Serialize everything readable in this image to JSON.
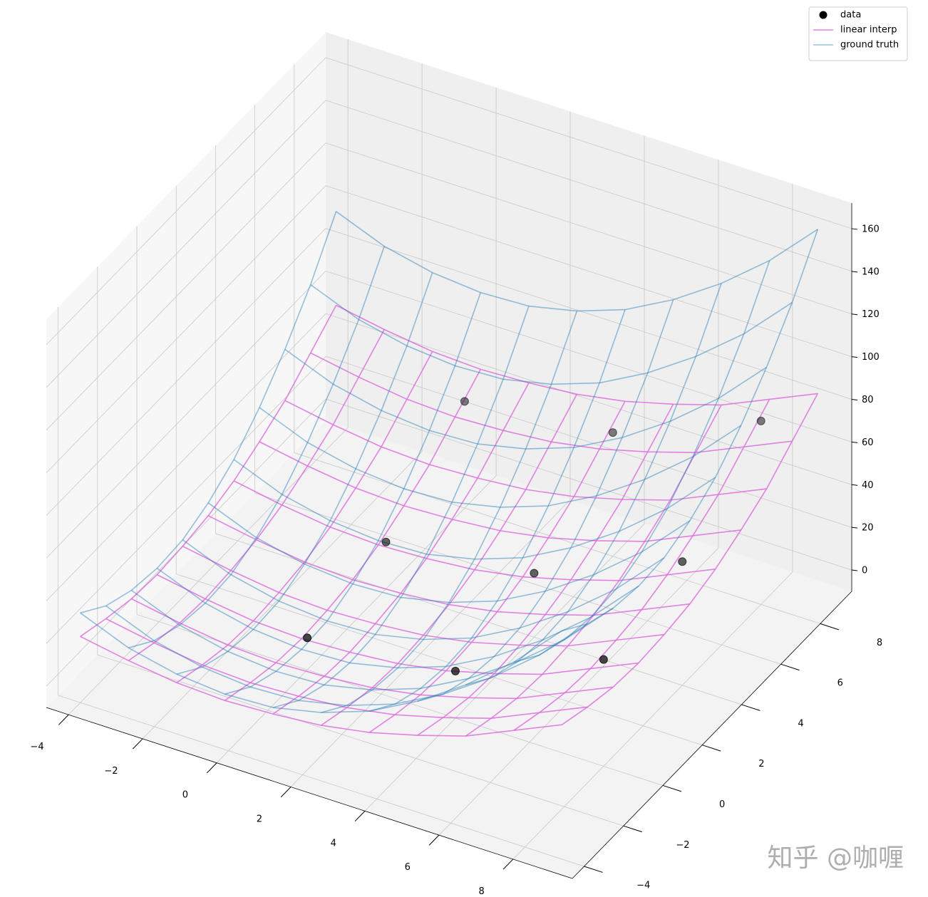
{
  "chart_data": {
    "type": "wireframe3d",
    "x": [
      -4,
      -2.7,
      -1.4,
      -0.1,
      1.2,
      2.5,
      3.8,
      5.1,
      6.4,
      7.7,
      9
    ],
    "y": [
      -4,
      -2.7,
      -1.4,
      -0.1,
      1.2,
      2.5,
      3.8,
      5.1,
      6.4,
      7.7,
      9
    ],
    "xlim": [
      -4.6,
      9.6
    ],
    "ylim": [
      -4.6,
      9.6
    ],
    "zlim": [
      -10,
      172
    ],
    "xticks": [
      {
        "value": -4,
        "label": "−4"
      },
      {
        "value": -2,
        "label": "−2"
      },
      0,
      2,
      4,
      6,
      8
    ],
    "yticks": [
      {
        "value": -4,
        "label": "−4"
      },
      {
        "value": -2,
        "label": "−2"
      },
      0,
      2,
      4,
      6,
      8
    ],
    "zticks": [
      0,
      20,
      40,
      60,
      80,
      100,
      120,
      140,
      160
    ],
    "grid": true,
    "legend": "upper right",
    "series": [
      {
        "name": "data",
        "kind": "scatter",
        "color": "#000000",
        "x": [
          0,
          4,
          8,
          0,
          4,
          8,
          0,
          4,
          8
        ],
        "y": [
          0,
          0,
          0,
          4,
          4,
          4,
          8,
          8,
          8
        ],
        "z": [
          5,
          12,
          40,
          12,
          20,
          48,
          40,
          48,
          76
        ]
      },
      {
        "name": "linear interp",
        "kind": "wireframe",
        "color": "#dd6fdd",
        "z": [
          [
            21,
            17,
            14,
            13,
            14,
            16,
            20,
            26,
            33,
            43,
            53
          ],
          [
            17,
            13,
            10,
            9,
            10,
            12,
            16,
            22,
            29,
            39,
            49
          ],
          [
            14,
            10,
            7,
            6,
            7,
            9,
            13,
            19,
            26,
            36,
            46
          ],
          [
            13,
            9,
            6,
            5,
            6,
            8,
            12,
            18,
            25,
            35,
            45
          ],
          [
            14,
            10,
            7,
            6,
            7,
            9,
            13,
            19,
            26,
            36,
            46
          ],
          [
            16,
            12,
            9,
            8,
            9,
            11,
            15,
            21,
            28,
            38,
            48
          ],
          [
            20,
            16,
            13,
            12,
            13,
            15,
            19,
            25,
            32,
            42,
            52
          ],
          [
            26,
            22,
            19,
            18,
            19,
            21,
            25,
            31,
            38,
            48,
            58
          ],
          [
            33,
            29,
            26,
            25,
            26,
            28,
            32,
            38,
            45,
            55,
            65
          ],
          [
            43,
            39,
            36,
            35,
            36,
            38,
            42,
            48,
            55,
            65,
            75
          ],
          [
            53,
            49,
            46,
            45,
            46,
            48,
            52,
            58,
            65,
            75,
            85
          ]
        ]
      },
      {
        "name": "ground truth",
        "kind": "wireframe",
        "color": "#1f77b4",
        "z": [
          [
            32,
            23,
            18,
            16,
            17,
            22,
            30,
            42,
            57,
            75,
            97
          ],
          [
            23,
            14,
            9,
            7,
            8,
            13,
            21,
            33,
            48,
            66,
            88
          ],
          [
            18,
            9,
            4,
            2,
            3,
            8,
            16,
            28,
            43,
            61,
            83
          ],
          [
            16,
            7,
            2,
            0,
            1,
            6,
            14,
            26,
            41,
            59,
            81
          ],
          [
            17,
            8,
            3,
            1,
            2,
            7,
            15,
            27,
            42,
            60,
            82
          ],
          [
            22,
            13,
            8,
            6,
            7,
            12,
            20,
            32,
            47,
            65,
            87
          ],
          [
            30,
            21,
            16,
            14,
            15,
            20,
            28,
            40,
            55,
            73,
            95
          ],
          [
            42,
            33,
            28,
            26,
            27,
            32,
            40,
            52,
            67,
            85,
            107
          ],
          [
            57,
            48,
            43,
            41,
            42,
            47,
            55,
            67,
            82,
            100,
            122
          ],
          [
            75,
            66,
            61,
            59,
            60,
            65,
            73,
            85,
            100,
            118,
            140
          ],
          [
            97,
            88,
            83,
            81,
            82,
            87,
            95,
            107,
            122,
            140,
            162
          ]
        ]
      }
    ],
    "watermark": "知乎 @咖喱"
  }
}
